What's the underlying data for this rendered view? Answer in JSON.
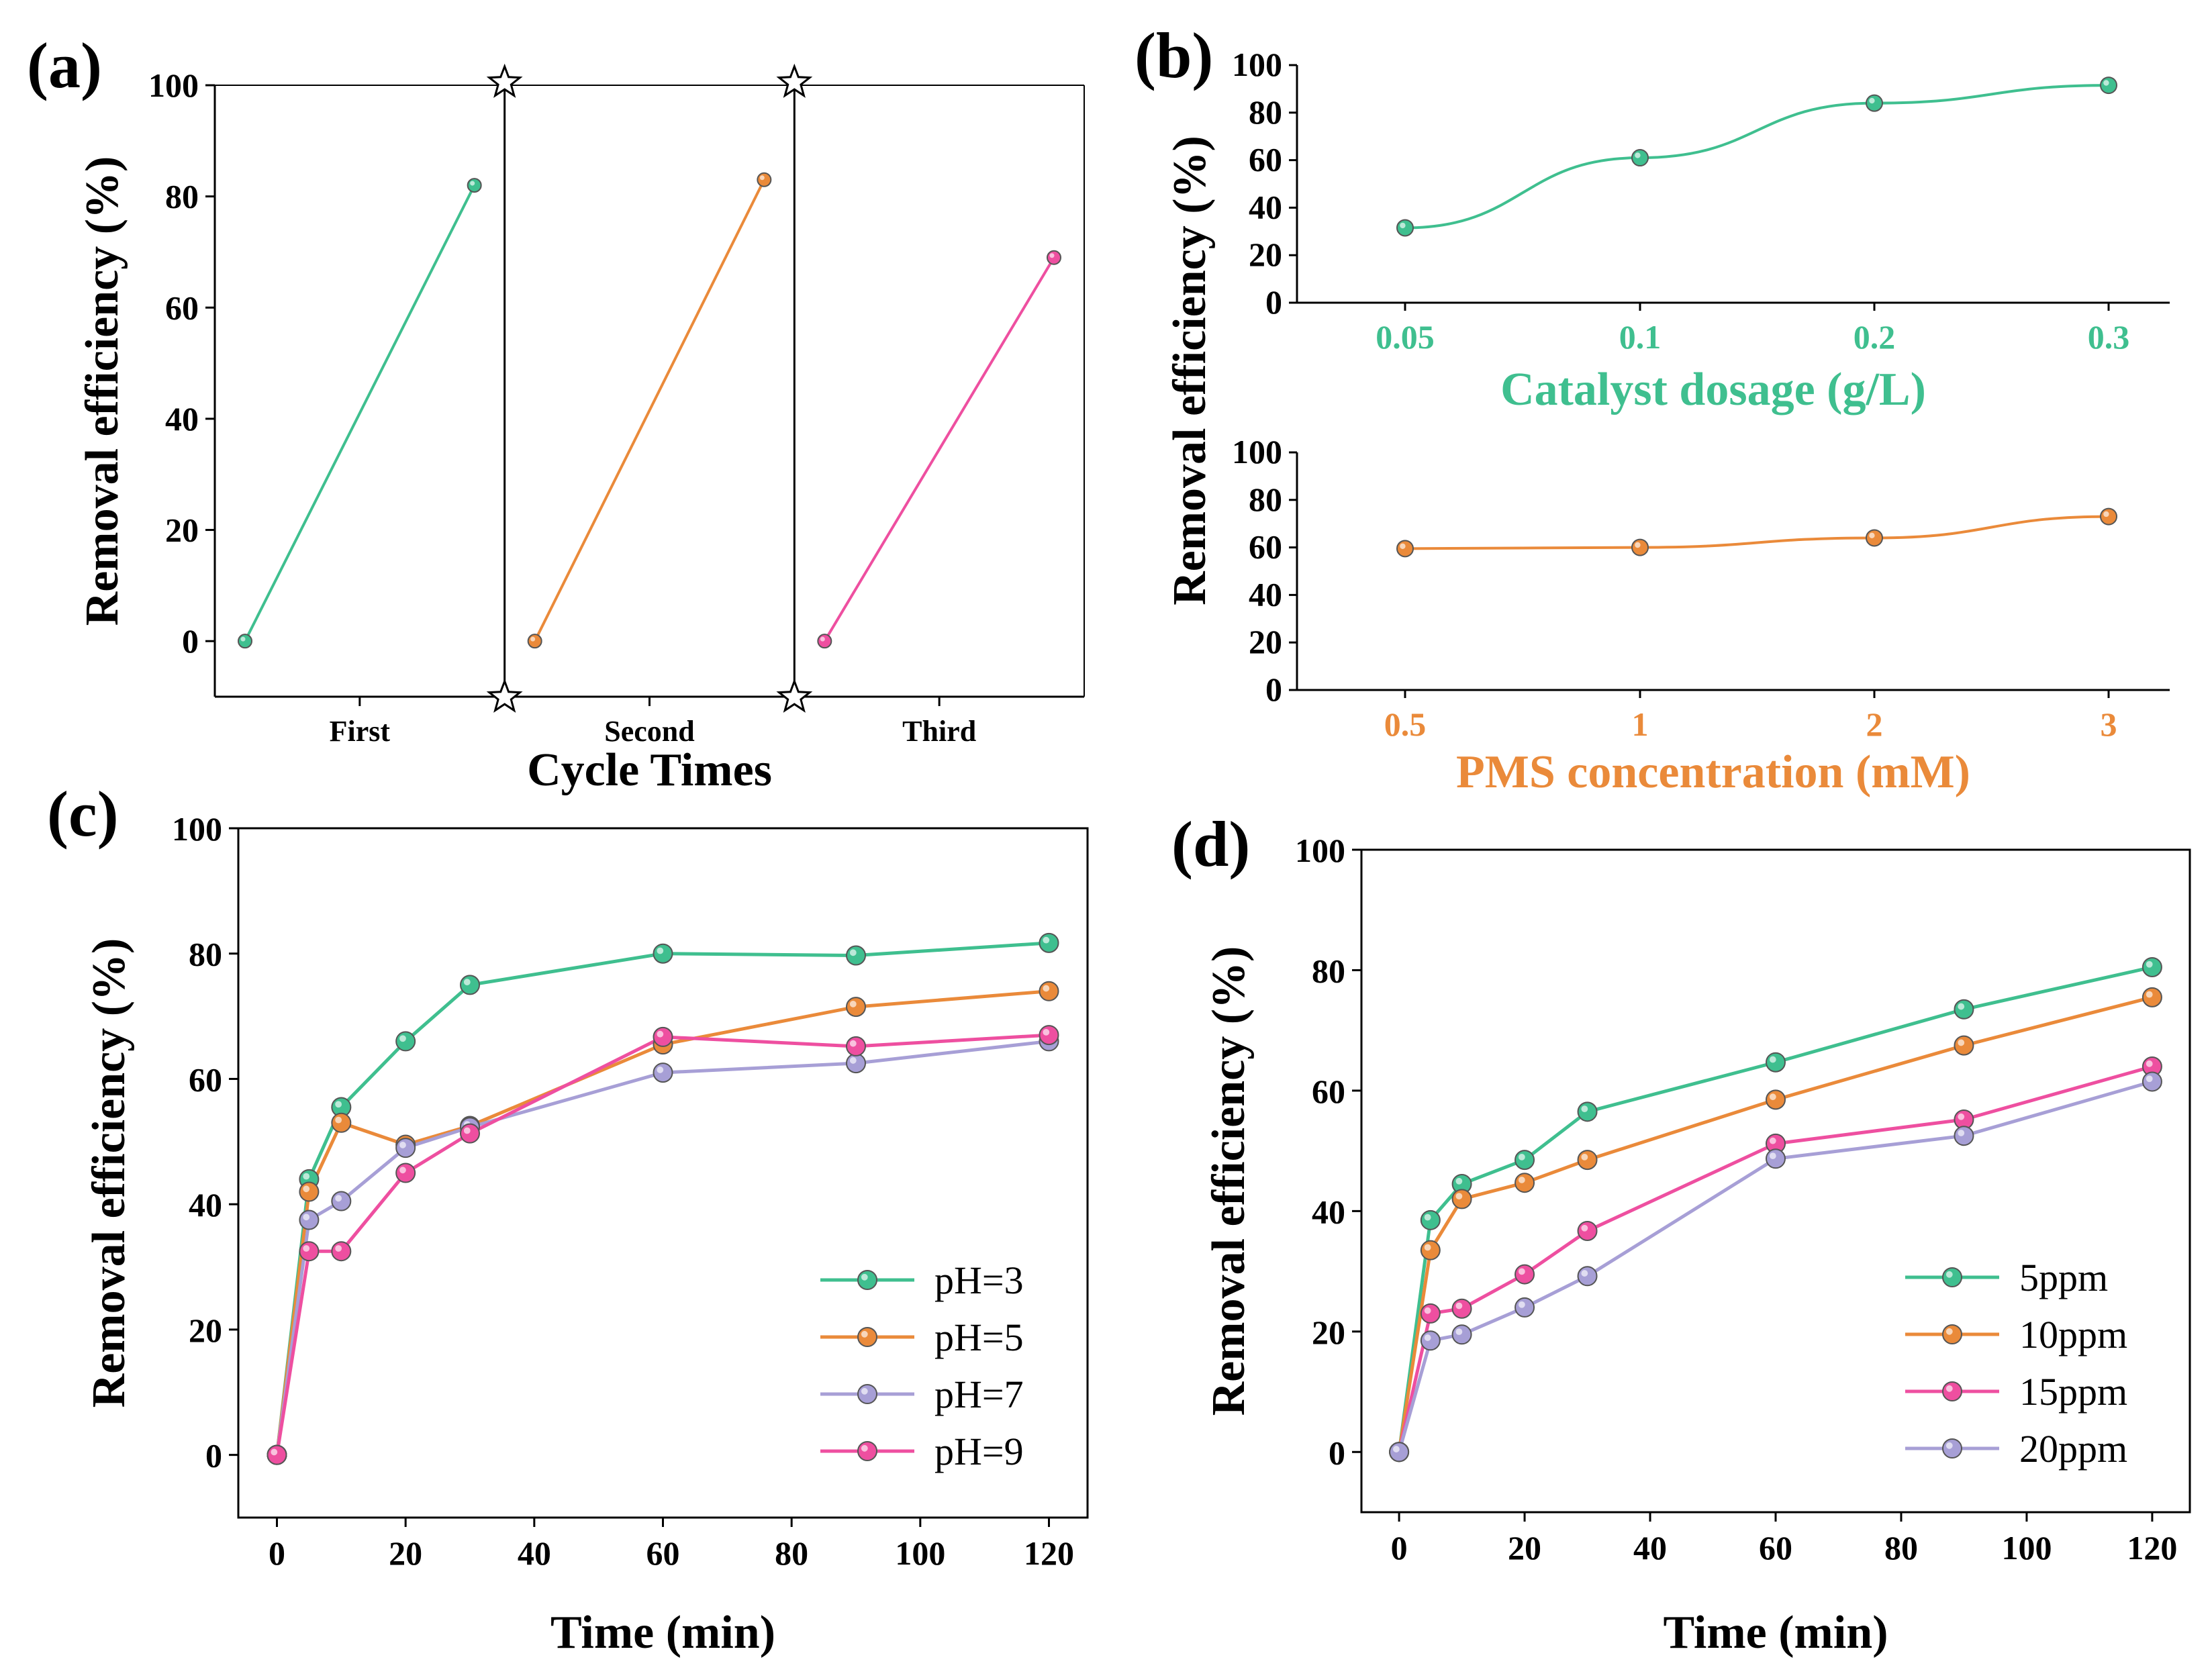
{
  "colors": {
    "green": "#3fbf8f",
    "orange": "#ea8a3a",
    "purple": "#a79fd6",
    "pink": "#ee4fa0"
  },
  "chart_data": [
    {
      "panel": "(a)",
      "type": "line",
      "title": "",
      "xlabel": "Cycle Times",
      "ylabel": "Removal efficiency (%)",
      "ylim": [
        -10,
        100
      ],
      "yticks": [
        0,
        20,
        40,
        60,
        80,
        100
      ],
      "categories": [
        "First",
        "Second",
        "Third"
      ],
      "series": [
        {
          "name": "First",
          "color": "green",
          "x": [
            0,
            60
          ],
          "values": [
            0,
            82
          ]
        },
        {
          "name": "Second",
          "color": "orange",
          "x": [
            0,
            60
          ],
          "values": [
            0,
            83
          ]
        },
        {
          "name": "Third",
          "color": "pink",
          "x": [
            0,
            60
          ],
          "values": [
            0,
            69
          ]
        }
      ]
    },
    {
      "panel": "(b)",
      "type": "line",
      "title": "",
      "xlabel": "Catalyst dosage (g/L)",
      "ylabel": "Removal efficiency (%)",
      "ylim": [
        0,
        100
      ],
      "yticks": [
        0,
        20,
        40,
        60,
        80,
        100
      ],
      "categories": [
        "0.05",
        "0.1",
        "0.2",
        "0.3"
      ],
      "series": [
        {
          "name": "Catalyst dosage",
          "color": "green",
          "values": [
            31.5,
            61,
            84,
            91.5
          ]
        }
      ]
    },
    {
      "panel": "(b)",
      "type": "line",
      "title": "",
      "xlabel": "PMS concentration (mM)",
      "ylabel": "Removal efficiency (%)",
      "ylim": [
        0,
        100
      ],
      "yticks": [
        0,
        20,
        40,
        60,
        80,
        100
      ],
      "categories": [
        "0.5",
        "1",
        "2",
        "3"
      ],
      "series": [
        {
          "name": "PMS concentration",
          "color": "orange",
          "values": [
            59.5,
            60,
            64,
            73
          ]
        }
      ]
    },
    {
      "panel": "(c)",
      "type": "line",
      "title": "",
      "xlabel": "Time (min)",
      "ylabel": "Removal efficiency (%)",
      "xlim": [
        -6,
        126
      ],
      "ylim": [
        -10,
        100
      ],
      "xticks": [
        0,
        20,
        40,
        60,
        80,
        100,
        120
      ],
      "yticks": [
        0,
        20,
        40,
        60,
        80,
        100
      ],
      "legend_position": "bottom-right",
      "x": [
        0,
        5,
        10,
        20,
        30,
        60,
        90,
        120
      ],
      "series": [
        {
          "name": "pH=3",
          "color": "green",
          "values": [
            0,
            44,
            55.5,
            66,
            75,
            80,
            79.7,
            81.7
          ]
        },
        {
          "name": "pH=5",
          "color": "orange",
          "values": [
            0,
            42,
            53,
            49.5,
            52.5,
            65.5,
            71.5,
            74
          ]
        },
        {
          "name": "pH=7",
          "color": "purple",
          "values": [
            0,
            37.5,
            40.5,
            49,
            52.3,
            61,
            62.5,
            66
          ]
        },
        {
          "name": "pH=9",
          "color": "pink",
          "values": [
            0,
            32.5,
            32.5,
            45,
            51.3,
            66.7,
            65.2,
            67
          ]
        }
      ]
    },
    {
      "panel": "(d)",
      "type": "line",
      "title": "",
      "xlabel": "Time (min)",
      "ylabel": "Removal efficiency (%)",
      "xlim": [
        -6,
        126
      ],
      "ylim": [
        -10,
        100
      ],
      "xticks": [
        0,
        20,
        40,
        60,
        80,
        100,
        120
      ],
      "yticks": [
        0,
        20,
        40,
        60,
        80,
        100
      ],
      "legend_position": "bottom-right",
      "x": [
        0,
        5,
        10,
        20,
        30,
        60,
        90,
        120
      ],
      "series": [
        {
          "name": "5ppm",
          "color": "green",
          "values": [
            0,
            38.5,
            44.5,
            48.5,
            56.5,
            64.7,
            73.5,
            80.5
          ]
        },
        {
          "name": "10ppm",
          "color": "orange",
          "values": [
            0,
            33.5,
            42,
            44.7,
            48.5,
            58.5,
            67.5,
            75.5
          ]
        },
        {
          "name": "15ppm",
          "color": "pink",
          "values": [
            0,
            23,
            23.8,
            29.5,
            36.7,
            51.2,
            55.2,
            64
          ]
        },
        {
          "name": "20ppm",
          "color": "purple",
          "values": [
            0,
            18.5,
            19.5,
            24,
            29.2,
            48.7,
            52.5,
            61.5
          ]
        }
      ]
    }
  ]
}
